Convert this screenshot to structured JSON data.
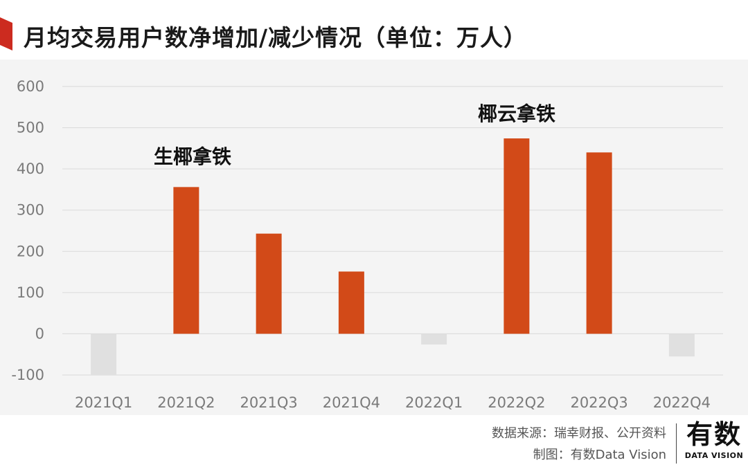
{
  "header": {
    "title": "月均交易用户数净增加/减少情况（单位：万人）"
  },
  "colors": {
    "accent": "#d24a18",
    "negative": "#e0e0e0",
    "flag": "#cc2b1f"
  },
  "chart_data": {
    "type": "bar",
    "title": "月均交易用户数净增加/减少情况（单位：万人）",
    "xlabel": "",
    "ylabel": "",
    "categories": [
      "2021Q1",
      "2021Q2",
      "2021Q3",
      "2021Q4",
      "2022Q1",
      "2022Q2",
      "2022Q3",
      "2022Q4"
    ],
    "values": [
      -100,
      356,
      243,
      151,
      -26,
      474,
      440,
      -55
    ],
    "ylim": [
      -100,
      600
    ],
    "yticks": [
      600,
      500,
      400,
      300,
      200,
      100,
      0,
      -100
    ],
    "grid": true,
    "annotations": [
      "生椰拿铁",
      "椰云拿铁"
    ]
  },
  "footer": {
    "source": "数据来源：瑞幸财报、公开资料",
    "made_by": "制图：有数Data Vision",
    "logo_mark": "有数",
    "logo_sub": "DATA VISION"
  }
}
